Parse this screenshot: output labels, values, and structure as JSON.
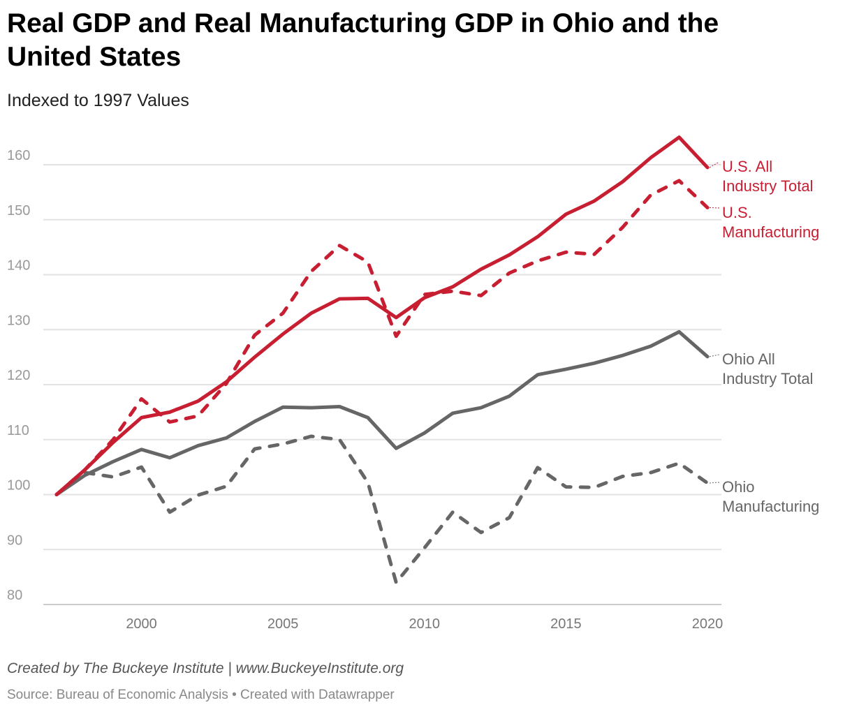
{
  "title": "Real GDP and Real Manufacturing GDP in Ohio and the United States",
  "subtitle": "Indexed to 1997 Values",
  "credit": "Created by The Buckeye Institute | www.BuckeyeInstitute.org",
  "source": "Source: Bureau of Economic Analysis • Created with Datawrapper",
  "chart_data": {
    "type": "line",
    "title": "Real GDP and Real Manufacturing GDP in Ohio and the United States",
    "subtitle": "Indexed to 1997 Values",
    "x": [
      1997,
      1998,
      1999,
      2000,
      2001,
      2002,
      2003,
      2004,
      2005,
      2006,
      2007,
      2008,
      2009,
      2010,
      2011,
      2012,
      2013,
      2014,
      2015,
      2016,
      2017,
      2018,
      2019,
      2020
    ],
    "xlim": [
      1997,
      2020
    ],
    "xticks": [
      2000,
      2005,
      2010,
      2015,
      2020
    ],
    "ylim": [
      80,
      165
    ],
    "yticks": [
      80,
      90,
      100,
      110,
      120,
      130,
      140,
      150,
      160
    ],
    "grid": true,
    "legend": "direct labels at right",
    "series": [
      {
        "name": "U.S. All Industry Total",
        "color": "#c71e32",
        "dashed": false,
        "values": [
          100,
          104.5,
          109.5,
          114,
          115,
          117,
          120.5,
          125,
          129.2,
          133,
          135.6,
          135.7,
          132.2,
          135.8,
          137.8,
          141,
          143.6,
          146.9,
          151,
          153.4,
          156.9,
          161.3,
          165,
          159.5
        ]
      },
      {
        "name": "U.S. Manufacturing",
        "color": "#c71e32",
        "dashed": true,
        "values": [
          100,
          104.5,
          110,
          117.4,
          113.2,
          114.3,
          120.2,
          129,
          133,
          140.6,
          145.3,
          142.3,
          128.8,
          136.4,
          137,
          136.2,
          140.3,
          142.5,
          144.1,
          143.7,
          148.6,
          154.5,
          157.1,
          152.2
        ]
      },
      {
        "name": "Ohio All Industry Total",
        "color": "#666666",
        "dashed": false,
        "values": [
          100,
          103.5,
          106,
          108.2,
          106.7,
          108.9,
          110.3,
          113.3,
          115.9,
          115.8,
          116,
          114,
          108.4,
          111.2,
          114.8,
          115.8,
          117.9,
          121.8,
          122.8,
          123.9,
          125.3,
          127,
          129.6,
          125.1
        ]
      },
      {
        "name": "Ohio Manufacturing",
        "color": "#666666",
        "dashed": true,
        "values": [
          100,
          104,
          103.2,
          105,
          96.8,
          99.9,
          101.5,
          108.3,
          109.2,
          110.6,
          110,
          102.2,
          84,
          90.3,
          96.8,
          93.1,
          95.8,
          104.9,
          101.4,
          101.3,
          103.3,
          104,
          105.7,
          102.1
        ]
      }
    ],
    "labels": [
      {
        "lines": [
          "U.S. All",
          "Industry Total"
        ],
        "color": "#c71e32"
      },
      {
        "lines": [
          "U.S.",
          "Manufacturing"
        ],
        "color": "#c71e32"
      },
      {
        "lines": [
          "Ohio All",
          "Industry Total"
        ],
        "color": "#666666"
      },
      {
        "lines": [
          "Ohio",
          "Manufacturing"
        ],
        "color": "#666666"
      }
    ]
  }
}
